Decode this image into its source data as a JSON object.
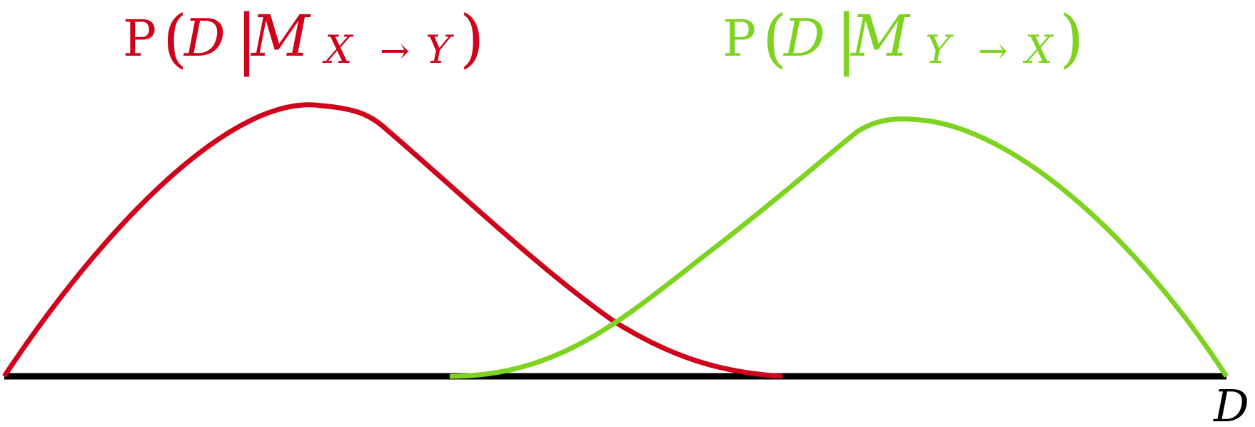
{
  "colors": {
    "model_xy": "#d0021b",
    "model_yx": "#7ed321",
    "axis": "#000000",
    "background": "#ffffff"
  },
  "labels": {
    "model_xy": {
      "prob": "P",
      "open_paren": "(",
      "data_symbol": "D",
      "given": "|",
      "model_symbol": "M",
      "sub_from": "X",
      "arrow": "→",
      "sub_to": "Y",
      "close_paren": ")"
    },
    "model_yx": {
      "prob": "P",
      "open_paren": "(",
      "data_symbol": "D",
      "given": "|",
      "model_symbol": "M",
      "sub_from": "Y",
      "arrow": "→",
      "sub_to": "X",
      "close_paren": ")"
    },
    "axis_label": "D"
  }
}
